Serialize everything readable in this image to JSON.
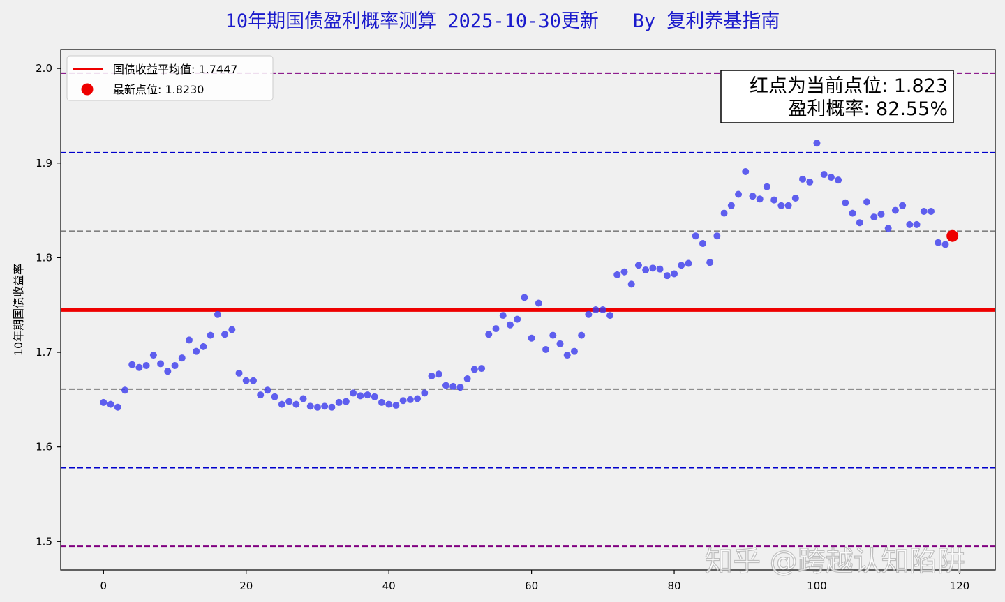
{
  "watermark": "知乎 @跨越认知陷阱",
  "chart_data": {
    "type": "scatter",
    "title": "10年期国债盈利概率测算 2025-10-30更新   By 复利养基指南",
    "title_color": "#1a1acc",
    "xlabel": "",
    "ylabel": "10年期国债收益率",
    "xlim": [
      -6,
      125
    ],
    "ylim": [
      1.47,
      2.02
    ],
    "xticks": [
      0,
      20,
      40,
      60,
      80,
      100,
      120
    ],
    "yticks": [
      1.5,
      1.6,
      1.7,
      1.8,
      1.9,
      2.0
    ],
    "ytick_labels": [
      "1.5",
      "1.6",
      "1.7",
      "1.8",
      "1.9",
      "2.0"
    ],
    "grid": false,
    "legend_position": "top-left",
    "legend": [
      {
        "label": "国债收益平均值: 1.7447",
        "kind": "line",
        "color": "#ee0000"
      },
      {
        "label": "最新点位: 1.8230",
        "kind": "point",
        "color": "#ee0000"
      }
    ],
    "annotation": {
      "lines": [
        "红点为当前点位: 1.823",
        "盈利概率: 82.55%"
      ],
      "position": "top-right"
    },
    "hlines": [
      {
        "y": 1.7447,
        "color": "#ee0000",
        "style": "solid"
      },
      {
        "y": 1.995,
        "color": "#800080",
        "style": "dashed"
      },
      {
        "y": 1.495,
        "color": "#800080",
        "style": "dashed"
      },
      {
        "y": 1.911,
        "color": "#0000cc",
        "style": "dashed"
      },
      {
        "y": 1.578,
        "color": "#0000cc",
        "style": "dashed"
      },
      {
        "y": 1.828,
        "color": "#808080",
        "style": "dashed"
      },
      {
        "y": 1.661,
        "color": "#808080",
        "style": "dashed"
      }
    ],
    "series": [
      {
        "color": "#3a3aee",
        "x": [
          0,
          1,
          2,
          3,
          4,
          5,
          6,
          7,
          8,
          9,
          10,
          11,
          12,
          13,
          14,
          15,
          16,
          17,
          18,
          19,
          20,
          21,
          22,
          23,
          24,
          25,
          26,
          27,
          28,
          29,
          30,
          31,
          32,
          33,
          34,
          35,
          36,
          37,
          38,
          39,
          40,
          41,
          42,
          43,
          44,
          45,
          46,
          47,
          48,
          49,
          50,
          51,
          52,
          53,
          54,
          55,
          56,
          57,
          58,
          59,
          60,
          61,
          62,
          63,
          64,
          65,
          66,
          67,
          68,
          69,
          70,
          71,
          72,
          73,
          74,
          75,
          76,
          77,
          78,
          79,
          80,
          81,
          82,
          83,
          84,
          85,
          86,
          87,
          88,
          89,
          90,
          91,
          92,
          93,
          94,
          95,
          96,
          97,
          98,
          99,
          100,
          101,
          102,
          103,
          104,
          105,
          106,
          107,
          108,
          109,
          110,
          111,
          112,
          113,
          114,
          115,
          116,
          117,
          118
        ],
        "y": [
          1.647,
          1.645,
          1.642,
          1.66,
          1.687,
          1.684,
          1.686,
          1.697,
          1.688,
          1.68,
          1.686,
          1.694,
          1.713,
          1.701,
          1.706,
          1.718,
          1.74,
          1.719,
          1.724,
          1.678,
          1.67,
          1.67,
          1.655,
          1.66,
          1.653,
          1.645,
          1.648,
          1.645,
          1.651,
          1.643,
          1.642,
          1.643,
          1.642,
          1.647,
          1.648,
          1.657,
          1.654,
          1.655,
          1.653,
          1.647,
          1.645,
          1.644,
          1.649,
          1.65,
          1.651,
          1.657,
          1.675,
          1.677,
          1.665,
          1.664,
          1.663,
          1.672,
          1.682,
          1.683,
          1.719,
          1.725,
          1.739,
          1.729,
          1.735,
          1.758,
          1.715,
          1.752,
          1.703,
          1.718,
          1.709,
          1.697,
          1.701,
          1.718,
          1.74,
          1.745,
          1.745,
          1.739,
          1.782,
          1.785,
          1.772,
          1.792,
          1.787,
          1.789,
          1.788,
          1.781,
          1.783,
          1.792,
          1.794,
          1.823,
          1.815,
          1.795,
          1.823,
          1.847,
          1.855,
          1.867,
          1.891,
          1.865,
          1.862,
          1.875,
          1.861,
          1.855,
          1.855,
          1.863,
          1.883,
          1.88,
          1.921,
          1.888,
          1.885,
          1.882,
          1.858,
          1.847,
          1.837,
          1.859,
          1.843,
          1.846,
          1.831,
          1.85,
          1.855,
          1.835,
          1.835,
          1.849,
          1.849,
          1.816,
          1.814
        ]
      },
      {
        "name": "最新点位",
        "color": "#ee0000",
        "x": [
          119
        ],
        "y": [
          1.823
        ]
      }
    ]
  }
}
